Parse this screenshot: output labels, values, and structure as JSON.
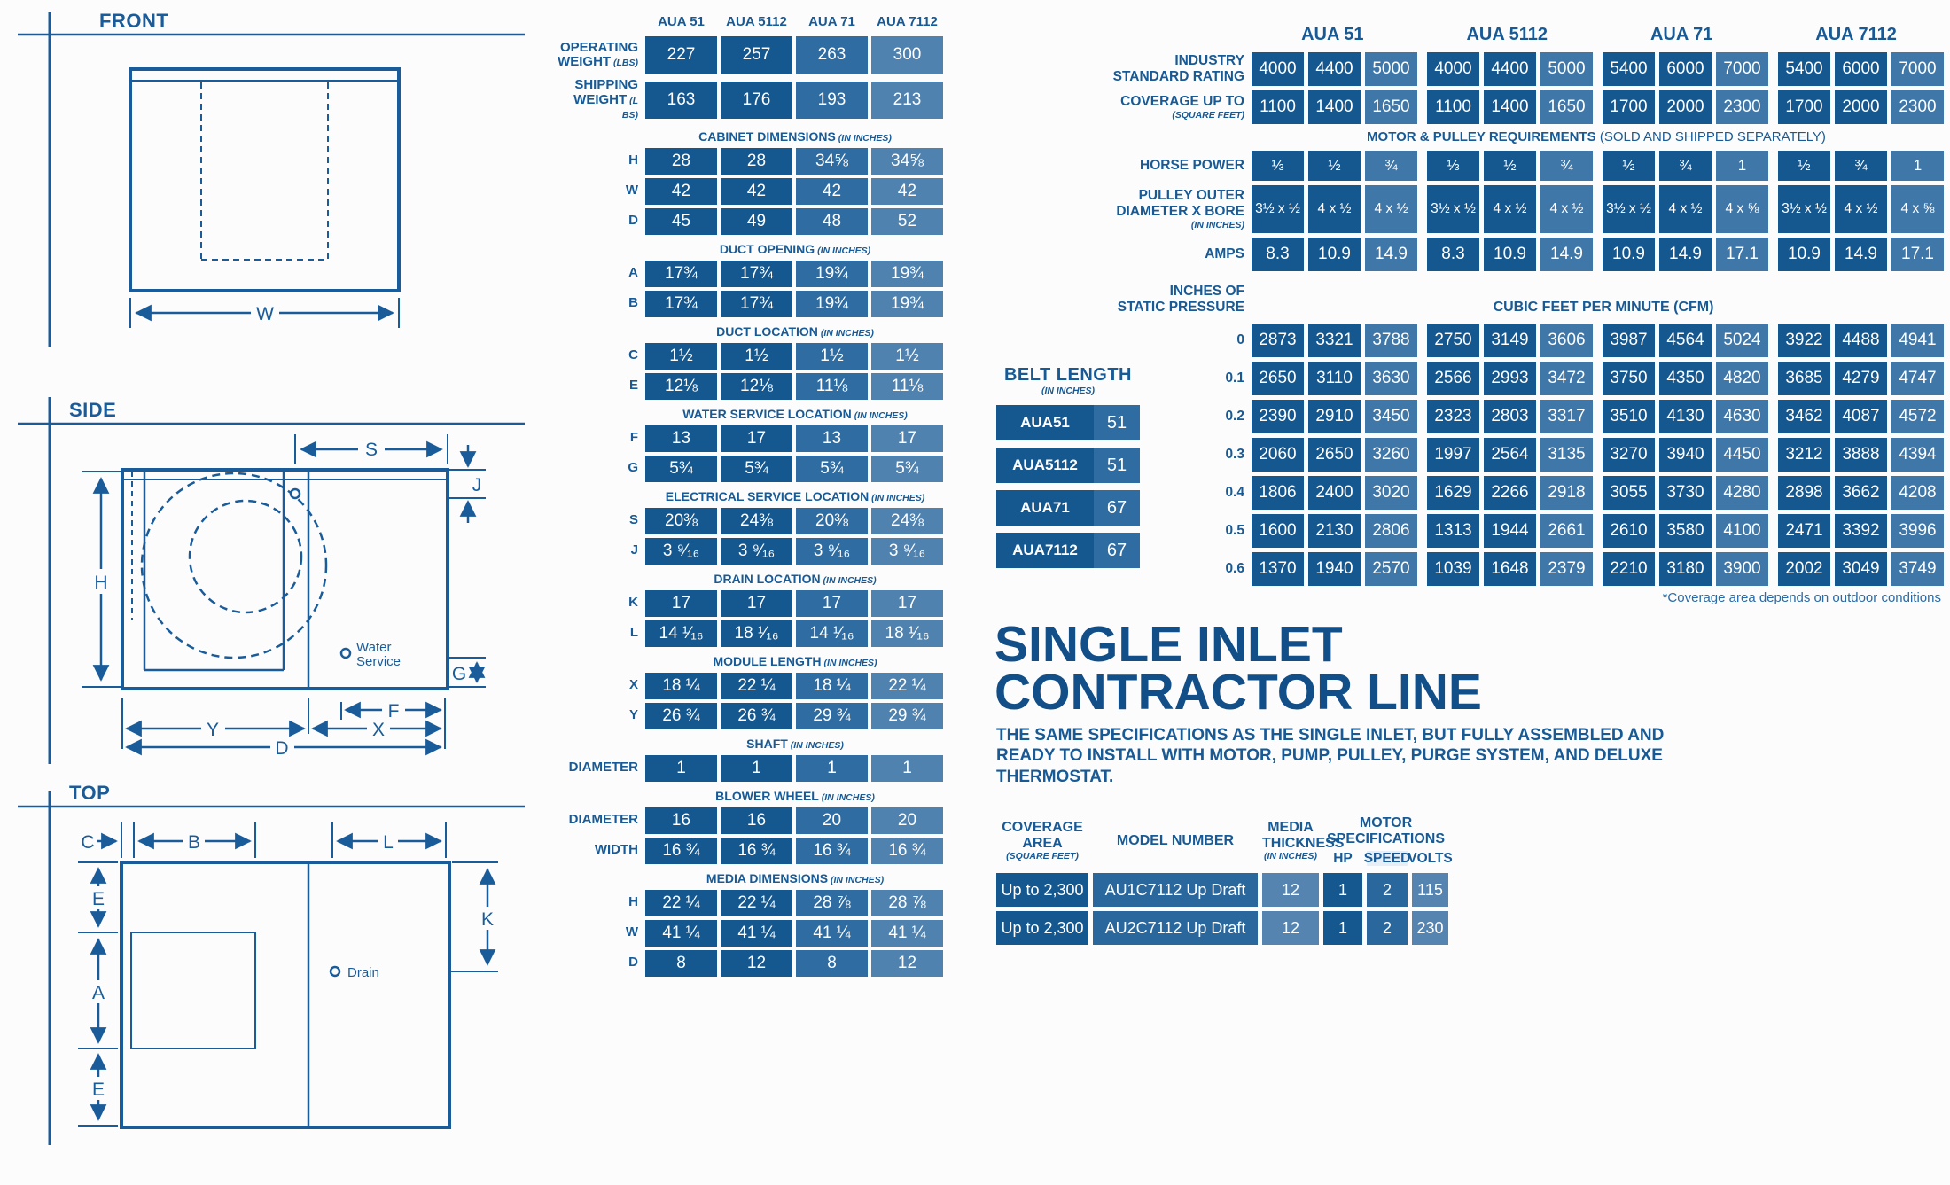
{
  "diagrams": {
    "front": {
      "title": "FRONT",
      "dim_w": "W"
    },
    "side": {
      "title": "SIDE",
      "dim_s": "S",
      "dim_j": "J",
      "dim_h": "H",
      "dim_g": "G",
      "dim_f": "F",
      "dim_x": "X",
      "dim_y": "Y",
      "dim_d": "D",
      "water_service_line1": "Water",
      "water_service_line2": "Service"
    },
    "top": {
      "title": "TOP",
      "dim_c": "C",
      "dim_b": "B",
      "dim_l": "L",
      "dim_e_top": "E",
      "dim_a": "A",
      "dim_e_bottom": "E",
      "dim_k": "K",
      "drain": "Drain"
    }
  },
  "spec_table": {
    "columns": [
      "AUA 51",
      "AUA 5112",
      "AUA 71",
      "AUA 7112"
    ],
    "sections": [
      {
        "rows": [
          {
            "label": "OPERATING WEIGHT",
            "note": "(LBS)",
            "tall": true,
            "values": [
              "227",
              "257",
              "263",
              "300"
            ]
          },
          {
            "label": "SHIPPING WEIGHT",
            "note": "(L BS)",
            "tall": true,
            "values": [
              "163",
              "176",
              "193",
              "213"
            ]
          }
        ]
      },
      {
        "header": "CABINET DIMENSIONS",
        "header_note": "(IN INCHES)",
        "rows": [
          {
            "label": "H",
            "values": [
              "28",
              "28",
              "34⅝",
              "34⅝"
            ]
          },
          {
            "label": "W",
            "values": [
              "42",
              "42",
              "42",
              "42"
            ]
          },
          {
            "label": "D",
            "values": [
              "45",
              "49",
              "48",
              "52"
            ]
          }
        ]
      },
      {
        "header": "DUCT OPENING",
        "header_note": "(IN INCHES)",
        "rows": [
          {
            "label": "A",
            "values": [
              "17¾",
              "17¾",
              "19¾",
              "19¾"
            ]
          },
          {
            "label": "B",
            "values": [
              "17¾",
              "17¾",
              "19¾",
              "19¾"
            ]
          }
        ]
      },
      {
        "header": "DUCT LOCATION",
        "header_note": "(IN INCHES)",
        "rows": [
          {
            "label": "C",
            "values": [
              "1½",
              "1½",
              "1½",
              "1½"
            ]
          },
          {
            "label": "E",
            "values": [
              "12⅛",
              "12⅛",
              "11⅛",
              "11⅛"
            ]
          }
        ]
      },
      {
        "header": "WATER SERVICE LOCATION",
        "header_note": "(IN INCHES)",
        "rows": [
          {
            "label": "F",
            "values": [
              "13",
              "17",
              "13",
              "17"
            ]
          },
          {
            "label": "G",
            "values": [
              "5¾",
              "5¾",
              "5¾",
              "5¾"
            ]
          }
        ]
      },
      {
        "header": "ELECTRICAL SERVICE LOCATION",
        "header_note": "(IN INCHES)",
        "rows": [
          {
            "label": "S",
            "values": [
              "20⅜",
              "24⅜",
              "20⅜",
              "24⅜"
            ]
          },
          {
            "label": "J",
            "values": [
              "3 ⁹⁄₁₆",
              "3 ⁹⁄₁₆",
              "3 ⁹⁄₁₆",
              "3 ⁹⁄₁₆"
            ]
          }
        ]
      },
      {
        "header": "DRAIN LOCATION",
        "header_note": "(IN INCHES)",
        "rows": [
          {
            "label": "K",
            "values": [
              "17",
              "17",
              "17",
              "17"
            ]
          },
          {
            "label": "L",
            "values": [
              "14 ¹⁄₁₆",
              "18 ¹⁄₁₆",
              "14 ¹⁄₁₆",
              "18 ¹⁄₁₆"
            ]
          }
        ]
      },
      {
        "header": "MODULE LENGTH",
        "header_note": "(IN INCHES)",
        "rows": [
          {
            "label": "X",
            "values": [
              "18 ¼",
              "22 ¼",
              "18 ¼",
              "22 ¼"
            ]
          },
          {
            "label": "Y",
            "values": [
              "26 ¾",
              "26 ¾",
              "29 ¾",
              "29 ¾"
            ]
          }
        ]
      },
      {
        "header": "SHAFT",
        "header_note": "(IN INCHES)",
        "rows": [
          {
            "label": "DIAMETER",
            "values": [
              "1",
              "1",
              "1",
              "1"
            ]
          }
        ]
      },
      {
        "header": "BLOWER WHEEL",
        "header_note": "(IN INCHES)",
        "rows": [
          {
            "label": "DIAMETER",
            "values": [
              "16",
              "16",
              "20",
              "20"
            ]
          },
          {
            "label": "WIDTH",
            "values": [
              "16 ¾",
              "16 ¾",
              "16 ¾",
              "16 ¾"
            ]
          }
        ]
      },
      {
        "header": "MEDIA DIMENSIONS",
        "header_note": "(IN INCHES)",
        "rows": [
          {
            "label": "H",
            "values": [
              "22 ¼",
              "22 ¼",
              "28 ⅞",
              "28 ⅞"
            ]
          },
          {
            "label": "W",
            "values": [
              "41 ¼",
              "41 ¼",
              "41 ¼",
              "41 ¼"
            ]
          },
          {
            "label": "D",
            "values": [
              "8",
              "12",
              "8",
              "12"
            ]
          }
        ]
      }
    ]
  },
  "performance": {
    "columns": [
      "AUA 51",
      "AUA 5112",
      "AUA 71",
      "AUA 7112"
    ],
    "top_rows": [
      {
        "label": "INDUSTRY\nSTANDARD RATING",
        "values": [
          "4000",
          "4400",
          "5000",
          "4000",
          "4400",
          "5000",
          "5400",
          "6000",
          "7000",
          "5400",
          "6000",
          "7000"
        ]
      },
      {
        "label": "COVERAGE UP TO",
        "note": "(SQUARE FEET)",
        "values": [
          "1100",
          "1400",
          "1650",
          "1100",
          "1400",
          "1650",
          "1700",
          "2000",
          "2300",
          "1700",
          "2000",
          "2300"
        ]
      }
    ],
    "motor_header": "MOTOR & PULLEY REQUIREMENTS",
    "motor_header_note": "(SOLD AND SHIPPED SEPARATELY)",
    "motor_rows": [
      {
        "label": "HORSE POWER",
        "values": [
          "⅓",
          "½",
          "¾",
          "⅓",
          "½",
          "¾",
          "½",
          "¾",
          "1",
          "½",
          "¾",
          "1"
        ]
      },
      {
        "label": "PULLEY OUTER\nDIAMETER X BORE",
        "note": "(IN INCHES)",
        "values": [
          "3½ x ½",
          "4 x ½",
          "4 x ½",
          "3½ x ½",
          "4 x ½",
          "4 x ½",
          "3½ x ½",
          "4 x ½",
          "4 x ⅝",
          "3½ x ½",
          "4 x ½",
          "4 x ⅝"
        ]
      },
      {
        "label": "AMPS",
        "values": [
          "8.3",
          "10.9",
          "14.9",
          "8.3",
          "10.9",
          "14.9",
          "10.9",
          "14.9",
          "17.1",
          "10.9",
          "14.9",
          "17.1"
        ]
      }
    ],
    "static_pressure_label": "INCHES OF\nSTATIC PRESSURE",
    "cfm_header": "CUBIC FEET PER MINUTE (CFM)",
    "cfm_rows": [
      {
        "label": "0",
        "values": [
          "2873",
          "3321",
          "3788",
          "2750",
          "3149",
          "3606",
          "3987",
          "4564",
          "5024",
          "3922",
          "4488",
          "4941"
        ]
      },
      {
        "label": "0.1",
        "values": [
          "2650",
          "3110",
          "3630",
          "2566",
          "2993",
          "3472",
          "3750",
          "4350",
          "4820",
          "3685",
          "4279",
          "4747"
        ]
      },
      {
        "label": "0.2",
        "values": [
          "2390",
          "2910",
          "3450",
          "2323",
          "2803",
          "3317",
          "3510",
          "4130",
          "4630",
          "3462",
          "4087",
          "4572"
        ]
      },
      {
        "label": "0.3",
        "values": [
          "2060",
          "2650",
          "3260",
          "1997",
          "2564",
          "3135",
          "3270",
          "3940",
          "4450",
          "3212",
          "3888",
          "4394"
        ]
      },
      {
        "label": "0.4",
        "values": [
          "1806",
          "2400",
          "3020",
          "1629",
          "2266",
          "2918",
          "3055",
          "3730",
          "4280",
          "2898",
          "3662",
          "4208"
        ]
      },
      {
        "label": "0.5",
        "values": [
          "1600",
          "2130",
          "2806",
          "1313",
          "1944",
          "2661",
          "2610",
          "3580",
          "4100",
          "2471",
          "3392",
          "3996"
        ]
      },
      {
        "label": "0.6",
        "values": [
          "1370",
          "1940",
          "2570",
          "1039",
          "1648",
          "2379",
          "2210",
          "3180",
          "3900",
          "2002",
          "3049",
          "3749"
        ]
      }
    ],
    "footnote": "*Coverage area depends on outdoor conditions"
  },
  "belt_length": {
    "title": "BELT LENGTH",
    "note": "(IN INCHES)",
    "rows": [
      {
        "model": "AUA51",
        "value": "51"
      },
      {
        "model": "AUA5112",
        "value": "51"
      },
      {
        "model": "AUA71",
        "value": "67"
      },
      {
        "model": "AUA7112",
        "value": "67"
      }
    ]
  },
  "contractor": {
    "heading": "SINGLE INLET\nCONTRACTOR LINE",
    "description": "THE SAME SPECIFICATIONS AS THE SINGLE INLET, BUT FULLY ASSEMBLED AND READY TO INSTALL WITH MOTOR, PUMP, PULLEY, PURGE SYSTEM, AND DELUXE THERMOSTAT.",
    "table": {
      "headers": {
        "coverage": "COVERAGE AREA",
        "coverage_note": "(SQUARE FEET)",
        "model": "MODEL NUMBER",
        "media": "MEDIA\nTHICKNESS",
        "media_note": "(IN INCHES)",
        "motor": "MOTOR SPECIFICATIONS",
        "hp": "HP",
        "speed": "SPEED",
        "volts": "VOLTS"
      },
      "rows": [
        {
          "coverage": "Up to 2,300",
          "model": "AU1C7112 Up Draft",
          "media": "12",
          "hp": "1",
          "speed": "2",
          "volts": "115"
        },
        {
          "coverage": "Up to 2,300",
          "model": "AU2C7112 Up Draft",
          "media": "12",
          "hp": "1",
          "speed": "2",
          "volts": "230"
        }
      ]
    }
  },
  "colors": {
    "cell_dark": "#15578F",
    "cell_mid": "#2F6CA1",
    "cell_light": "#5082AF",
    "cell_mid_right": "#3F77A8",
    "label_blue": "#175A96",
    "heading_navy": "#124E87",
    "line_blue": "#1A5C99",
    "footnote_blue": "#2A6AA5",
    "speed_highlight": "#E7EEF6"
  }
}
